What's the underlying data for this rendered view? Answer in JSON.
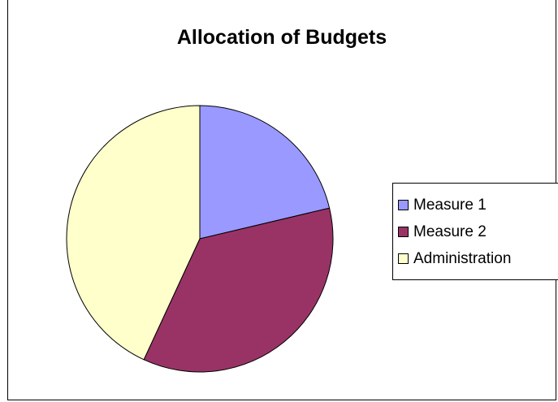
{
  "chart_data": {
    "type": "pie",
    "title": "Allocation of Budgets",
    "categories": [
      "Measure 1",
      "Measure 2",
      "Administration"
    ],
    "values": [
      21.3,
      35.6,
      43.1
    ],
    "colors": [
      "#9999ff",
      "#993366",
      "#ffffcc"
    ],
    "legend_position": "right"
  }
}
